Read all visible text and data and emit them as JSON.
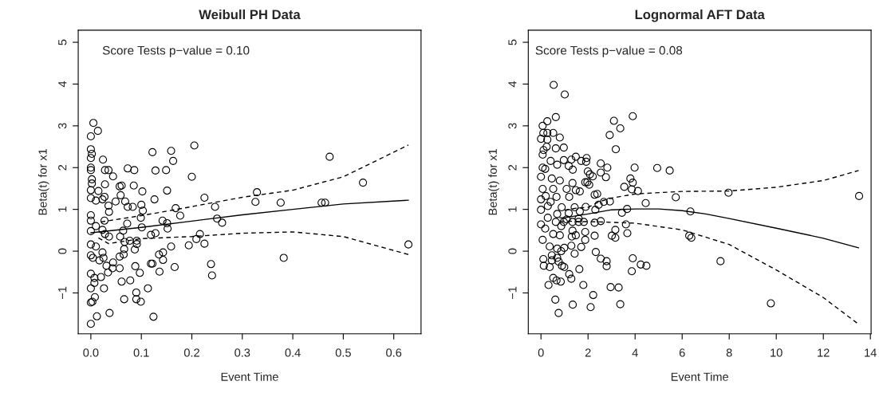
{
  "chart_data": [
    {
      "type": "scatter",
      "title": "Weibull PH Data",
      "xlabel": "Event Time",
      "ylabel": "Beta(t) for x1",
      "annotations": [
        "Score Tests p−value = 0.10"
      ],
      "xlim": [
        -0.025,
        0.654
      ],
      "ylim": [
        -1.98,
        5.29
      ],
      "xticks": [
        {
          "value": 0,
          "label": "0.0"
        },
        {
          "value": 0.1,
          "label": "0.1"
        },
        {
          "value": 0.2,
          "label": "0.2"
        },
        {
          "value": 0.3,
          "label": "0.3"
        },
        {
          "value": 0.4,
          "label": "0.4"
        },
        {
          "value": 0.5,
          "label": "0.5"
        },
        {
          "value": 0.6,
          "label": "0.6"
        }
      ],
      "yticks": [
        -1,
        0,
        1,
        2,
        3,
        4,
        5
      ],
      "grid": false,
      "series": [
        {
          "marker": "circle",
          "color": "#000000",
          "x": [
            0.005,
            0.014,
            0.0,
            0.0,
            0.002,
            0.0,
            0.024,
            0.0,
            0.0,
            0.028,
            0.035,
            0.044,
            0.028,
            0.002,
            0.002,
            0.0,
            0.015,
            0.0,
            0.01,
            0.023,
            0.027,
            0.035,
            0.036,
            0.0,
            0.0,
            0.027,
            0.0,
            0.01,
            0.023,
            0.028,
            0.036,
            0.0,
            0.01,
            0.0,
            0.004,
            0.023,
            0.025,
            0.017,
            0.031,
            0.034,
            0.0,
            0.007,
            0.02,
            0.007,
            0.0,
            0.026,
            0.008,
            0.0,
            0.003,
            0.012,
            0.0,
            0.037,
            0.044,
            0.043,
            0.049,
            0.057,
            0.061,
            0.059,
            0.058,
            0.064,
            0.057,
            0.065,
            0.057,
            0.061,
            0.066,
            0.067,
            0.066,
            0.068,
            0.072,
            0.073,
            0.073,
            0.083,
            0.085,
            0.086,
            0.077,
            0.078,
            0.087,
            0.088,
            0.091,
            0.091,
            0.09,
            0.09,
            0.097,
            0.099,
            0.099,
            0.101,
            0.1,
            0.102,
            0.103,
            0.113,
            0.119,
            0.122,
            0.119,
            0.128,
            0.122,
            0.126,
            0.128,
            0.124,
            0.135,
            0.136,
            0.142,
            0.143,
            0.143,
            0.149,
            0.151,
            0.151,
            0.152,
            0.159,
            0.163,
            0.159,
            0.166,
            0.168,
            0.177,
            0.194,
            0.2,
            0.205,
            0.209,
            0.216,
            0.225,
            0.225,
            0.238,
            0.24,
            0.246,
            0.25,
            0.26,
            0.326,
            0.329,
            0.376,
            0.382,
            0.457,
            0.464,
            0.473,
            0.539,
            0.629
          ],
          "values": [
            3.07,
            2.88,
            2.75,
            2.44,
            2.33,
            2.23,
            2.19,
            2.0,
            1.94,
            1.94,
            1.94,
            1.79,
            1.6,
            1.72,
            1.62,
            1.46,
            1.44,
            1.27,
            1.21,
            1.24,
            1.3,
            1.09,
            0.94,
            0.86,
            0.73,
            0.73,
            0.48,
            0.6,
            0.51,
            0.41,
            0.35,
            0.16,
            0.11,
            -0.1,
            -0.16,
            -0.03,
            -0.16,
            -0.22,
            -0.35,
            -0.51,
            -0.54,
            -0.64,
            -0.62,
            -0.76,
            -0.89,
            -0.89,
            -1.1,
            -1.23,
            -1.21,
            -1.56,
            -1.74,
            -1.48,
            -0.27,
            -0.41,
            1.19,
            1.55,
            1.57,
            1.34,
            0.35,
            0.49,
            -0.13,
            -0.08,
            -0.41,
            -0.73,
            -1.15,
            0.22,
            0.05,
            1.19,
            0.66,
            1.06,
            1.98,
            1.06,
            1.57,
            1.94,
            0.25,
            -0.7,
            0.04,
            -0.36,
            0.25,
            0.17,
            -0.99,
            -1.15,
            -0.52,
            -1.21,
            0.8,
            0.57,
            1.11,
            1.43,
            0.97,
            -0.89,
            -0.3,
            -0.3,
            0.39,
            0.43,
            2.37,
            1.24,
            1.93,
            -1.57,
            -0.08,
            -0.49,
            0.73,
            -0.03,
            -0.21,
            1.94,
            1.45,
            0.67,
            0.54,
            2.4,
            2.16,
            0.11,
            -0.38,
            1.03,
            0.85,
            0.14,
            1.78,
            2.53,
            0.29,
            0.41,
            1.28,
            0.18,
            -0.31,
            -0.58,
            1.06,
            0.78,
            0.68,
            1.18,
            1.41,
            1.16,
            -0.16,
            1.16,
            1.16,
            2.26,
            1.64,
            0.16
          ]
        },
        {
          "type": "line",
          "marker": "none",
          "color": "#000000",
          "line_style": "solid",
          "x": [
            0.0,
            0.1,
            0.2,
            0.3,
            0.4,
            0.5,
            0.629
          ],
          "values": [
            0.44,
            0.57,
            0.72,
            0.87,
            1.0,
            1.13,
            1.22
          ]
        },
        {
          "type": "line",
          "marker": "none",
          "color": "#000000",
          "line_style": "dashed",
          "x": [
            0.02,
            0.1,
            0.17,
            0.3,
            0.4,
            0.5,
            0.629
          ],
          "values": [
            0.7,
            0.85,
            1.0,
            1.29,
            1.46,
            1.78,
            2.54
          ]
        },
        {
          "type": "line",
          "marker": "none",
          "color": "#000000",
          "line_style": "dashed",
          "x": [
            0.015,
            0.035,
            0.1,
            0.2,
            0.3,
            0.4,
            0.5,
            0.629
          ],
          "values": [
            0.32,
            0.18,
            0.3,
            0.35,
            0.43,
            0.46,
            0.35,
            -0.08
          ]
        }
      ]
    },
    {
      "type": "scatter",
      "title": "Lognormal AFT Data",
      "xlabel": "Event Time",
      "ylabel": "Beta(t) for x1",
      "annotations": [
        "Score Tests p−value = 0.08"
      ],
      "xlim": [
        -0.54,
        14.03
      ],
      "ylim": [
        -1.98,
        5.29
      ],
      "xticks": [
        0,
        2,
        4,
        6,
        8,
        10,
        12,
        14
      ],
      "yticks": [
        -1,
        0,
        1,
        2,
        3,
        4,
        5
      ],
      "grid": false,
      "series": [
        {
          "marker": "circle",
          "color": "#000000",
          "x": [
            0.54,
            1.01,
            0.63,
            0.27,
            0.07,
            0.1,
            0.27,
            0.52,
            0.8,
            0.0,
            0.27,
            0.24,
            0.63,
            0.97,
            0.07,
            0.11,
            0.07,
            0.41,
            0.69,
            0.97,
            1.18,
            1.29,
            1.48,
            1.71,
            1.94,
            1.92,
            1.35,
            0.0,
            0.18,
            0.46,
            0.8,
            0.52,
            0.07,
            0.2,
            0.0,
            0.41,
            0.66,
            1.09,
            1.34,
            1.48,
            1.65,
            1.2,
            1.43,
            1.88,
            1.97,
            2.05,
            1.99,
            2.08,
            2.2,
            1.9,
            2.28,
            2.39,
            2.31,
            2.45,
            2.67,
            2.93,
            2.54,
            2.54,
            2.82,
            2.76,
            2.92,
            3.1,
            3.18,
            3.37,
            3.9,
            3.98,
            3.8,
            3.9,
            3.54,
            3.86,
            4.12,
            4.45,
            3.66,
            3.44,
            3.61,
            3.67,
            3.16,
            3.01,
            3.16,
            2.54,
            2.28,
            2.28,
            1.88,
            1.88,
            1.71,
            2.33,
            1.43,
            2.54,
            2.79,
            2.79,
            3.9,
            4.24,
            4.48,
            3.86,
            1.63,
            1.2,
            1.29,
            1.8,
            2.96,
            3.3,
            2.22,
            1.35,
            2.11,
            3.37,
            0.61,
            0.75,
            0.32,
            0.52,
            0.66,
            0.84,
            0.1,
            0.12,
            0.37,
            0.46,
            0.46,
            0.69,
            0.75,
            0.89,
            0.99,
            0.07,
            0.37,
            0.69,
            0.86,
            0.99,
            1.29,
            1.31,
            1.48,
            1.34,
            0.0,
            0.18,
            0.52,
            0.8,
            0.86,
            0.29,
            0.63,
            0.97,
            1.34,
            1.6,
            1.82,
            1.6,
            0.69,
            1.09,
            1.18,
            1.65,
            0.0,
            0.29,
            0.88,
            4.94,
            5.47,
            5.73,
            6.35,
            6.3,
            6.39,
            7.63,
            7.97,
            9.77,
            13.52
          ],
          "values": [
            3.98,
            3.75,
            3.21,
            3.11,
            3.0,
            2.83,
            2.83,
            2.83,
            2.72,
            2.69,
            2.67,
            2.5,
            2.46,
            2.48,
            2.31,
            2.42,
            2.0,
            2.16,
            2.07,
            2.18,
            2.04,
            2.19,
            2.26,
            2.16,
            2.23,
            2.14,
            1.95,
            1.78,
            1.97,
            1.74,
            1.69,
            1.49,
            1.49,
            1.32,
            1.24,
            1.18,
            1.3,
            1.49,
            1.63,
            1.46,
            1.43,
            1.3,
            1.05,
            1.65,
            1.65,
            1.59,
            1.91,
            1.84,
            1.79,
            1.06,
            1.35,
            1.37,
            0.99,
            1.11,
            1.18,
            1.19,
            2.1,
            1.88,
            2.0,
            1.77,
            2.78,
            3.12,
            2.44,
            2.94,
            3.23,
            2.0,
            1.74,
            1.64,
            1.54,
            1.48,
            1.44,
            1.15,
            1.01,
            0.92,
            0.64,
            0.43,
            0.51,
            0.37,
            0.32,
            0.72,
            0.68,
            0.37,
            0.27,
            0.46,
            0.1,
            -0.02,
            -0.06,
            -0.18,
            -0.24,
            -0.36,
            -0.17,
            -0.32,
            -0.35,
            -0.48,
            -0.43,
            -0.55,
            -0.66,
            -0.81,
            -0.86,
            -0.87,
            -1.05,
            -1.28,
            -1.34,
            -1.27,
            -1.16,
            -1.48,
            -0.81,
            -0.64,
            -0.7,
            -0.73,
            -0.19,
            -0.35,
            -0.38,
            -0.22,
            -0.1,
            -0.16,
            -0.25,
            -0.35,
            -0.38,
            0.27,
            0.11,
            0.06,
            0.0,
            0.08,
            0.13,
            0.35,
            0.38,
            0.49,
            0.64,
            0.54,
            0.41,
            0.38,
            0.6,
            0.8,
            0.7,
            0.7,
            0.7,
            0.7,
            0.7,
            0.78,
            0.89,
            0.76,
            0.91,
            0.95,
            0.99,
            1.08,
            1.05,
            1.99,
            1.93,
            1.29,
            0.95,
            0.37,
            0.32,
            -0.24,
            1.4,
            -1.25,
            1.32
          ]
        },
        {
          "type": "line",
          "marker": "none",
          "color": "#000000",
          "line_style": "solid",
          "x": [
            0.8,
            1,
            2,
            3,
            4,
            5,
            6,
            7,
            8,
            10,
            12,
            13.5
          ],
          "values": [
            0.8,
            0.8,
            0.89,
            0.99,
            1.01,
            1.01,
            0.97,
            0.89,
            0.78,
            0.55,
            0.31,
            0.08
          ]
        },
        {
          "type": "line",
          "marker": "none",
          "color": "#000000",
          "line_style": "dashed",
          "x": [
            1,
            1.5,
            2,
            2.5,
            3,
            4,
            6,
            8,
            10,
            12,
            13.5
          ],
          "values": [
            0.98,
            1.03,
            1.05,
            1.19,
            1.27,
            1.37,
            1.43,
            1.44,
            1.53,
            1.69,
            1.93
          ]
        },
        {
          "type": "line",
          "marker": "none",
          "color": "#000000",
          "line_style": "dashed",
          "x": [
            0.8,
            2.5,
            4,
            6,
            8,
            10,
            12,
            13.5
          ],
          "values": [
            0.72,
            0.7,
            0.67,
            0.51,
            0.16,
            -0.45,
            -1.11,
            -1.75
          ]
        }
      ]
    }
  ]
}
